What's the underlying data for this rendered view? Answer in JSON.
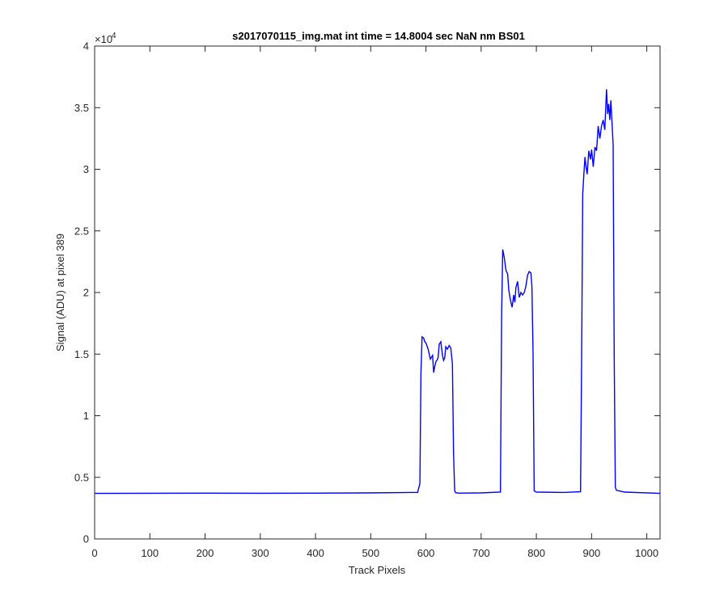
{
  "chart_data": {
    "type": "line",
    "title": "s2017070115_img.mat int time = 14.8004 sec  NaN nm BS01",
    "xlabel": "Track Pixels",
    "ylabel": "Signal (ADU) at pixel 389",
    "xlim": [
      0,
      1024
    ],
    "ylim": [
      0,
      40000
    ],
    "x_ticks": [
      0,
      100,
      200,
      300,
      400,
      500,
      600,
      700,
      800,
      900,
      1000
    ],
    "y_ticks": [
      0,
      5000,
      10000,
      15000,
      20000,
      25000,
      30000,
      35000,
      40000
    ],
    "y_tick_labels": [
      "0",
      "0.5",
      "1",
      "1.5",
      "2",
      "2.5",
      "3",
      "3.5",
      "4"
    ],
    "y_exponent_base": "×10",
    "y_exponent_power": "4",
    "grid": false,
    "series": [
      {
        "color": "#0000ff",
        "x": [
          0,
          100,
          200,
          300,
          400,
          500,
          585,
          589,
          591,
          593,
          596,
          598,
          600,
          604,
          608,
          612,
          614,
          616,
          618,
          620,
          622,
          624,
          627,
          630,
          632,
          634,
          636,
          639,
          642,
          645,
          648,
          650,
          652,
          654,
          660,
          700,
          735,
          737,
          739,
          742,
          745,
          748,
          750,
          753,
          756,
          759,
          761,
          763,
          766,
          769,
          772,
          775,
          778,
          781,
          784,
          787,
          790,
          792,
          794,
          796,
          800,
          850,
          880,
          882,
          884,
          886,
          888,
          890,
          892,
          895,
          898,
          900,
          903,
          906,
          909,
          912,
          915,
          918,
          921,
          924,
          927,
          929,
          931,
          933,
          935,
          937,
          939,
          941,
          943,
          945,
          960,
          1024
        ],
        "y": [
          3700,
          3710,
          3720,
          3710,
          3720,
          3740,
          3780,
          4500,
          13500,
          16400,
          16300,
          16000,
          15900,
          15400,
          14600,
          14900,
          13500,
          14000,
          14400,
          14500,
          14700,
          15800,
          16000,
          14900,
          14500,
          14700,
          15600,
          15400,
          15700,
          15500,
          14200,
          7000,
          3900,
          3750,
          3720,
          3740,
          3800,
          18000,
          23500,
          22800,
          21800,
          21500,
          20200,
          19400,
          18800,
          19800,
          19200,
          20400,
          20900,
          19600,
          20000,
          19800,
          20000,
          20500,
          21400,
          21700,
          21600,
          20500,
          15000,
          3900,
          3800,
          3780,
          3830,
          15000,
          28000,
          29600,
          31000,
          30200,
          29600,
          31500,
          30800,
          31600,
          30200,
          31800,
          31500,
          33500,
          32500,
          33500,
          34000,
          33200,
          36500,
          34500,
          35300,
          34000,
          35600,
          33800,
          32000,
          15000,
          4200,
          3950,
          3800,
          3700
        ]
      }
    ]
  }
}
